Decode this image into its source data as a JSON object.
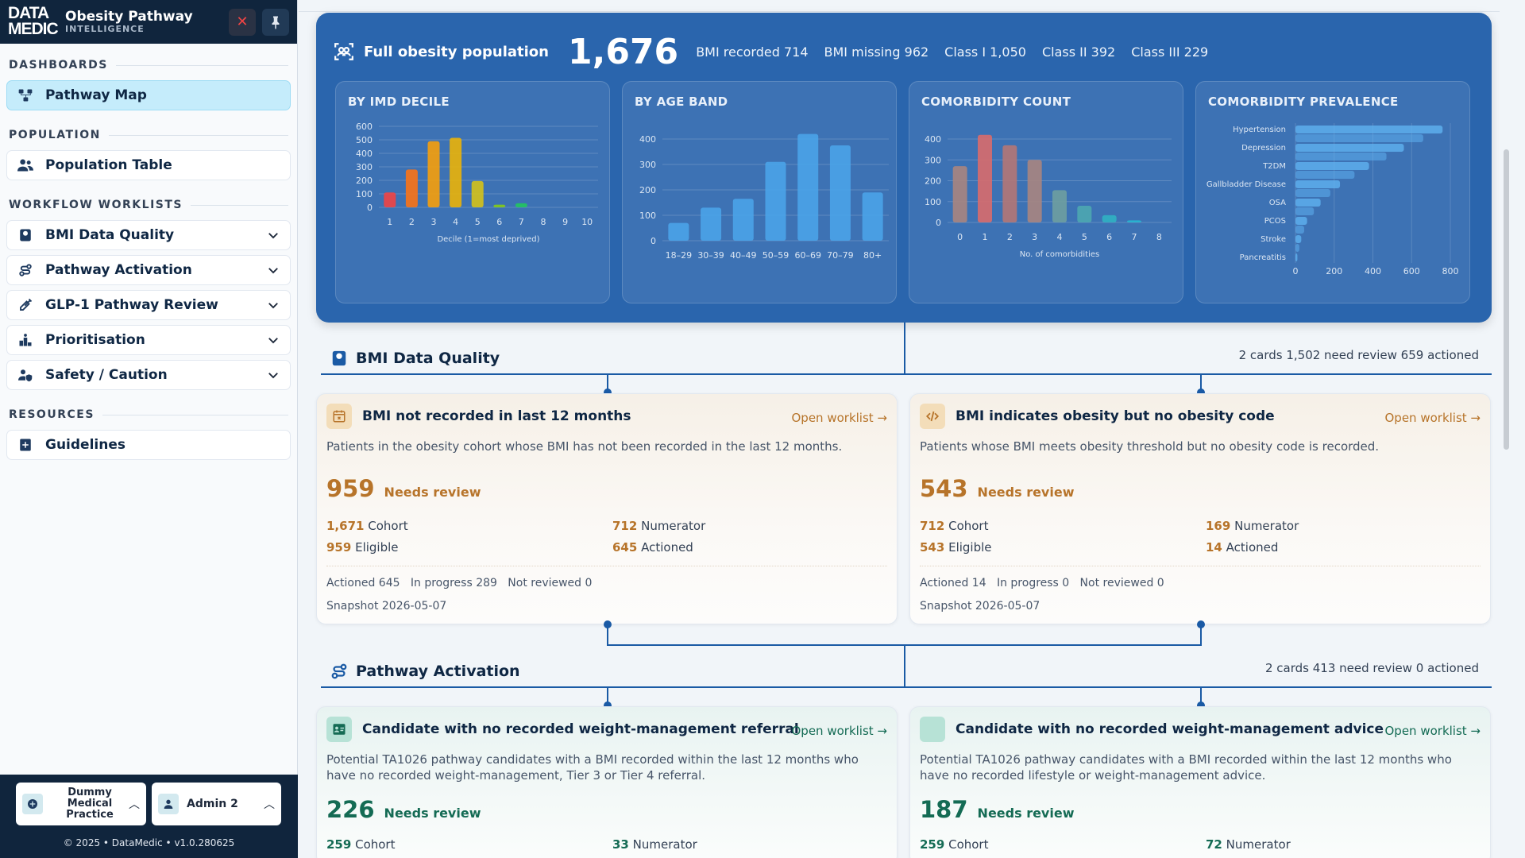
{
  "brand": {
    "logo_top": "DATA",
    "logo_bottom": "MEDIC",
    "title": "Obesity Pathway",
    "subtitle": "INTELLIGENCE"
  },
  "sidebar": {
    "sections": {
      "dashboards": "DASHBOARDS",
      "population": "POPULATION",
      "workflow": "WORKFLOW WORKLISTS",
      "resources": "RESOURCES"
    },
    "items": {
      "pathway_map": "Pathway Map",
      "population_table": "Population Table",
      "bmi_data_quality": "BMI Data Quality",
      "pathway_activation": "Pathway Activation",
      "glp1_review": "GLP-1 Pathway Review",
      "prioritisation": "Prioritisation",
      "safety": "Safety / Caution",
      "guidelines": "Guidelines"
    },
    "footer": {
      "practice": "Dummy Medical Practice",
      "user": "Admin 2",
      "copyright": "© 2025  •  DataMedic  •  v1.0.280625"
    }
  },
  "hero": {
    "title": "Full obesity population",
    "total": "1,676",
    "stats": [
      "BMI recorded 714",
      "BMI missing 962",
      "Class I 1,050",
      "Class II 392",
      "Class III 229"
    ]
  },
  "chart_data": [
    {
      "type": "bar",
      "title": "BY IMD DECILE",
      "xlabel": "Decile (1=most deprived)",
      "categories": [
        "1",
        "2",
        "3",
        "4",
        "5",
        "6",
        "7",
        "8",
        "9",
        "10"
      ],
      "values": [
        110,
        280,
        490,
        515,
        195,
        20,
        30,
        0,
        0,
        0
      ],
      "ylim": [
        0,
        600
      ],
      "yticks": [
        0,
        100,
        200,
        300,
        400,
        500,
        600
      ],
      "colors": [
        "#ef4444",
        "#f97316",
        "#f59e0b",
        "#eab308",
        "#d4c21a",
        "#84cc16",
        "#22c55e",
        "#10b981",
        "#14b8a6",
        "#0ea5e9"
      ]
    },
    {
      "type": "bar",
      "title": "BY AGE BAND",
      "categories": [
        "18–29",
        "30–39",
        "40–49",
        "50–59",
        "60–69",
        "70–79",
        "80+"
      ],
      "values": [
        70,
        130,
        165,
        310,
        420,
        375,
        190
      ],
      "ylim": [
        0,
        400
      ],
      "yticks": [
        0,
        100,
        200,
        300,
        400
      ],
      "colors": [
        "#4aa3e8",
        "#4aa3e8",
        "#4aa3e8",
        "#4aa3e8",
        "#4aa3e8",
        "#4aa3e8",
        "#4aa3e8"
      ]
    },
    {
      "type": "bar",
      "title": "COMORBIDITY COUNT",
      "xlabel": "No. of comorbidities",
      "categories": [
        "0",
        "1",
        "2",
        "3",
        "4",
        "5",
        "6",
        "7",
        "8"
      ],
      "values": [
        270,
        420,
        370,
        300,
        155,
        80,
        35,
        10,
        0
      ],
      "ylim": [
        0,
        400
      ],
      "yticks": [
        0,
        100,
        200,
        300,
        400
      ],
      "colors": [
        "#a98580",
        "#d86b6b",
        "#b47776",
        "#a98580",
        "#6e9ea0",
        "#4ca7b0",
        "#30b1c2",
        "#27b7d1",
        "#27b7d1"
      ]
    },
    {
      "type": "bar",
      "orientation": "horizontal",
      "title": "COMORBIDITY PREVALENCE",
      "categories": [
        "Hypertension",
        "Depression",
        "T2DM",
        "Gallbladder Disease",
        "OSA",
        "PCOS",
        "Stroke",
        "Pancreatitis"
      ],
      "values": [
        760,
        560,
        380,
        230,
        130,
        60,
        30,
        10
      ],
      "xlim": [
        0,
        800
      ],
      "xticks": [
        0,
        200,
        400,
        600,
        800
      ],
      "color": "#5fb1f0"
    }
  ],
  "sections": {
    "bmi": {
      "title": "BMI Data Quality",
      "meta": "2 cards  1,502 need review  659 actioned",
      "cards": [
        {
          "title": "BMI not recorded in last 12 months",
          "link": "Open worklist →",
          "desc": "Patients in the obesity cohort whose BMI has not been recorded in the last 12 months.",
          "count": "959",
          "status": "Needs review",
          "cohort": "1,671",
          "cohort_label": "Cohort",
          "numerator": "712",
          "numerator_label": "Numerator",
          "eligible": "959",
          "eligible_label": "Eligible",
          "actioned": "645",
          "actioned_label": "Actioned",
          "progress": "Actioned 645   In progress 289   Not reviewed 0",
          "snapshot": "Snapshot 2026-05-07"
        },
        {
          "title": "BMI indicates obesity but no obesity code",
          "link": "Open worklist →",
          "desc": "Patients whose BMI meets obesity threshold but no obesity code is recorded.",
          "count": "543",
          "status": "Needs review",
          "cohort": "712",
          "cohort_label": "Cohort",
          "numerator": "169",
          "numerator_label": "Numerator",
          "eligible": "543",
          "eligible_label": "Eligible",
          "actioned": "14",
          "actioned_label": "Actioned",
          "progress": "Actioned 14   In progress 0   Not reviewed 0",
          "snapshot": "Snapshot 2026-05-07"
        }
      ]
    },
    "activation": {
      "title": "Pathway Activation",
      "meta": "2 cards  413 need review  0 actioned",
      "cards": [
        {
          "title": "Candidate with no recorded weight-management referral",
          "link": "Open worklist →",
          "desc": "Potential TA1026 pathway candidates with a BMI recorded within the last 12 months who have no recorded weight-management, Tier 3 or Tier 4 referral.",
          "count": "226",
          "status": "Needs review",
          "cohort": "259",
          "cohort_label": "Cohort",
          "numerator": "33",
          "numerator_label": "Numerator"
        },
        {
          "title": "Candidate with no recorded weight-management advice",
          "link": "Open worklist →",
          "desc": "Potential TA1026 pathway candidates with a BMI recorded within the last 12 months who have no recorded lifestyle or weight-management advice.",
          "count": "187",
          "status": "Needs review",
          "cohort": "259",
          "cohort_label": "Cohort",
          "numerator": "72",
          "numerator_label": "Numerator"
        }
      ]
    }
  }
}
